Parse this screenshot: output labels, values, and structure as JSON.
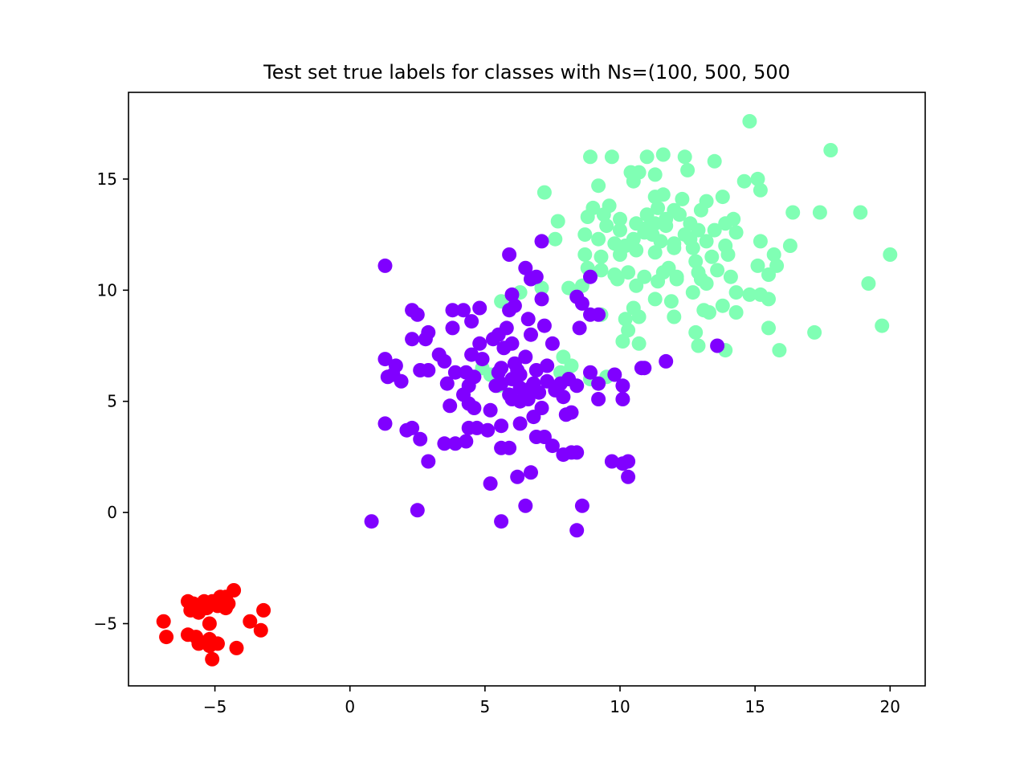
{
  "chart_data": {
    "type": "scatter",
    "title": "Test set true labels for classes with Ns=(100, 500, 500",
    "xlabel": "",
    "ylabel": "",
    "xlim": [
      -8.2,
      21.3
    ],
    "ylim": [
      -7.8,
      18.9
    ],
    "xticks": [
      -5,
      0,
      5,
      10,
      15,
      20
    ],
    "xtick_labels": [
      "−5",
      "0",
      "5",
      "10",
      "15",
      "20"
    ],
    "yticks": [
      -5,
      0,
      5,
      10,
      15
    ],
    "ytick_labels": [
      "−5",
      "0",
      "5",
      "10",
      "15"
    ],
    "grid": false,
    "series": [
      {
        "color": "#80ffb4",
        "points": [
          [
            14.8,
            17.6
          ],
          [
            17.8,
            16.3
          ],
          [
            8.9,
            16.0
          ],
          [
            9.7,
            16.0
          ],
          [
            11.0,
            16.0
          ],
          [
            11.6,
            16.1
          ],
          [
            12.4,
            16.0
          ],
          [
            10.4,
            15.3
          ],
          [
            10.7,
            15.3
          ],
          [
            11.3,
            15.2
          ],
          [
            12.5,
            15.4
          ],
          [
            13.5,
            15.8
          ],
          [
            14.6,
            14.9
          ],
          [
            15.1,
            15.0
          ],
          [
            7.2,
            14.4
          ],
          [
            9.2,
            14.7
          ],
          [
            10.5,
            14.9
          ],
          [
            11.3,
            14.2
          ],
          [
            11.6,
            14.3
          ],
          [
            12.3,
            14.1
          ],
          [
            13.0,
            13.6
          ],
          [
            13.2,
            14.0
          ],
          [
            13.8,
            14.2
          ],
          [
            15.2,
            14.5
          ],
          [
            7.7,
            13.1
          ],
          [
            8.8,
            13.3
          ],
          [
            9.0,
            13.7
          ],
          [
            9.4,
            13.4
          ],
          [
            10.0,
            13.2
          ],
          [
            10.6,
            13.0
          ],
          [
            11.0,
            13.4
          ],
          [
            11.4,
            13.7
          ],
          [
            11.7,
            13.2
          ],
          [
            12.2,
            13.4
          ],
          [
            12.6,
            13.0
          ],
          [
            14.2,
            13.2
          ],
          [
            16.4,
            13.5
          ],
          [
            17.4,
            13.5
          ],
          [
            18.9,
            13.5
          ],
          [
            9.5,
            12.9
          ],
          [
            10.0,
            12.7
          ],
          [
            11.2,
            12.5
          ],
          [
            11.7,
            12.9
          ],
          [
            12.4,
            12.5
          ],
          [
            13.5,
            12.7
          ],
          [
            13.9,
            13.0
          ],
          [
            14.3,
            12.6
          ],
          [
            8.7,
            12.5
          ],
          [
            9.2,
            12.3
          ],
          [
            9.8,
            12.1
          ],
          [
            10.5,
            12.3
          ],
          [
            10.9,
            12.6
          ],
          [
            11.5,
            12.2
          ],
          [
            12.0,
            12.1
          ],
          [
            12.6,
            12.3
          ],
          [
            13.2,
            12.2
          ],
          [
            13.9,
            12.0
          ],
          [
            15.2,
            12.2
          ],
          [
            16.3,
            12.0
          ],
          [
            7.6,
            12.3
          ],
          [
            8.7,
            11.6
          ],
          [
            9.3,
            11.5
          ],
          [
            10.0,
            11.6
          ],
          [
            10.6,
            11.8
          ],
          [
            11.3,
            11.7
          ],
          [
            12.0,
            11.9
          ],
          [
            12.8,
            11.3
          ],
          [
            13.4,
            11.5
          ],
          [
            14.0,
            11.6
          ],
          [
            15.7,
            11.6
          ],
          [
            20.0,
            11.6
          ],
          [
            8.8,
            11.0
          ],
          [
            9.3,
            10.9
          ],
          [
            10.3,
            10.8
          ],
          [
            10.9,
            10.6
          ],
          [
            11.6,
            10.8
          ],
          [
            12.1,
            10.6
          ],
          [
            12.9,
            10.8
          ],
          [
            13.6,
            10.9
          ],
          [
            14.1,
            10.6
          ],
          [
            15.1,
            11.1
          ],
          [
            15.8,
            11.1
          ],
          [
            15.5,
            10.7
          ],
          [
            9.9,
            10.5
          ],
          [
            10.6,
            10.2
          ],
          [
            11.4,
            10.4
          ],
          [
            12.1,
            10.5
          ],
          [
            13.2,
            10.3
          ],
          [
            14.3,
            9.9
          ],
          [
            14.8,
            9.8
          ],
          [
            15.2,
            9.8
          ],
          [
            19.2,
            10.3
          ],
          [
            8.1,
            10.1
          ],
          [
            7.1,
            10.1
          ],
          [
            6.3,
            9.9
          ],
          [
            5.6,
            9.5
          ],
          [
            10.5,
            9.2
          ],
          [
            11.3,
            9.6
          ],
          [
            11.9,
            9.5
          ],
          [
            12.7,
            9.9
          ],
          [
            13.1,
            9.1
          ],
          [
            13.8,
            9.3
          ],
          [
            14.3,
            9.0
          ],
          [
            15.5,
            9.6
          ],
          [
            9.3,
            8.9
          ],
          [
            10.2,
            8.7
          ],
          [
            10.7,
            8.8
          ],
          [
            12.0,
            8.8
          ],
          [
            13.3,
            9.0
          ],
          [
            12.8,
            8.1
          ],
          [
            15.5,
            8.3
          ],
          [
            17.2,
            8.1
          ],
          [
            19.7,
            8.4
          ],
          [
            10.3,
            8.2
          ],
          [
            10.1,
            7.7
          ],
          [
            10.7,
            7.6
          ],
          [
            12.9,
            7.5
          ],
          [
            13.9,
            7.3
          ],
          [
            15.9,
            7.3
          ],
          [
            7.9,
            7.0
          ],
          [
            8.2,
            6.6
          ],
          [
            7.8,
            6.3
          ],
          [
            8.9,
            6.0
          ],
          [
            9.5,
            6.1
          ],
          [
            5.5,
            5.7
          ],
          [
            5.2,
            6.2
          ],
          [
            4.9,
            6.5
          ],
          [
            8.6,
            10.2
          ],
          [
            9.8,
            10.7
          ],
          [
            11.0,
            12.8
          ],
          [
            12.7,
            11.9
          ],
          [
            13.0,
            10.5
          ],
          [
            11.8,
            11.0
          ],
          [
            10.2,
            12.0
          ],
          [
            9.6,
            13.8
          ],
          [
            12.0,
            13.6
          ],
          [
            12.9,
            12.7
          ],
          [
            11.3,
            13.0
          ]
        ]
      },
      {
        "color": "#8000ff",
        "points": [
          [
            1.3,
            11.1
          ],
          [
            7.1,
            12.2
          ],
          [
            5.9,
            11.6
          ],
          [
            6.5,
            11.0
          ],
          [
            6.7,
            10.5
          ],
          [
            6.9,
            10.6
          ],
          [
            8.9,
            10.6
          ],
          [
            6.0,
            9.8
          ],
          [
            7.1,
            9.6
          ],
          [
            6.1,
            9.3
          ],
          [
            8.4,
            9.7
          ],
          [
            8.6,
            9.4
          ],
          [
            2.3,
            9.1
          ],
          [
            2.5,
            8.9
          ],
          [
            3.8,
            9.1
          ],
          [
            4.2,
            9.1
          ],
          [
            4.8,
            9.2
          ],
          [
            5.9,
            9.1
          ],
          [
            8.9,
            8.9
          ],
          [
            9.2,
            8.9
          ],
          [
            4.5,
            8.6
          ],
          [
            6.6,
            8.7
          ],
          [
            3.8,
            8.3
          ],
          [
            2.9,
            8.1
          ],
          [
            5.5,
            8.0
          ],
          [
            5.8,
            8.3
          ],
          [
            6.7,
            8.0
          ],
          [
            7.2,
            8.4
          ],
          [
            8.5,
            8.3
          ],
          [
            2.3,
            7.8
          ],
          [
            2.8,
            7.8
          ],
          [
            4.8,
            7.6
          ],
          [
            5.3,
            7.8
          ],
          [
            5.7,
            7.4
          ],
          [
            6.0,
            7.6
          ],
          [
            7.5,
            7.6
          ],
          [
            13.6,
            7.5
          ],
          [
            1.3,
            6.9
          ],
          [
            1.7,
            6.6
          ],
          [
            3.3,
            7.1
          ],
          [
            3.5,
            6.8
          ],
          [
            4.9,
            6.9
          ],
          [
            5.6,
            6.5
          ],
          [
            6.1,
            6.7
          ],
          [
            6.5,
            7.0
          ],
          [
            6.9,
            6.4
          ],
          [
            7.3,
            6.6
          ],
          [
            11.7,
            6.8
          ],
          [
            1.4,
            6.1
          ],
          [
            1.6,
            6.2
          ],
          [
            1.9,
            5.9
          ],
          [
            2.6,
            6.4
          ],
          [
            2.9,
            6.4
          ],
          [
            3.9,
            6.3
          ],
          [
            4.3,
            6.3
          ],
          [
            4.6,
            6.1
          ],
          [
            5.5,
            6.3
          ],
          [
            6.0,
            6.0
          ],
          [
            6.3,
            6.2
          ],
          [
            6.8,
            5.8
          ],
          [
            7.3,
            5.9
          ],
          [
            7.6,
            5.5
          ],
          [
            8.1,
            6.0
          ],
          [
            8.9,
            6.3
          ],
          [
            9.8,
            6.2
          ],
          [
            10.8,
            6.5
          ],
          [
            3.6,
            5.8
          ],
          [
            4.2,
            5.3
          ],
          [
            4.4,
            5.7
          ],
          [
            5.6,
            5.8
          ],
          [
            5.9,
            5.3
          ],
          [
            6.3,
            5.6
          ],
          [
            6.7,
            5.6
          ],
          [
            7.0,
            5.4
          ],
          [
            8.4,
            5.7
          ],
          [
            9.2,
            5.8
          ],
          [
            10.1,
            5.7
          ],
          [
            3.7,
            4.8
          ],
          [
            4.4,
            4.9
          ],
          [
            4.6,
            4.7
          ],
          [
            5.2,
            4.6
          ],
          [
            6.0,
            5.1
          ],
          [
            6.3,
            5.0
          ],
          [
            6.6,
            5.1
          ],
          [
            7.1,
            4.7
          ],
          [
            7.9,
            5.2
          ],
          [
            9.2,
            5.1
          ],
          [
            10.1,
            5.1
          ],
          [
            1.3,
            4.0
          ],
          [
            2.1,
            3.7
          ],
          [
            2.3,
            3.8
          ],
          [
            4.4,
            3.8
          ],
          [
            4.7,
            3.8
          ],
          [
            5.1,
            3.7
          ],
          [
            5.6,
            3.9
          ],
          [
            6.3,
            4.0
          ],
          [
            6.8,
            4.3
          ],
          [
            8.0,
            4.4
          ],
          [
            8.2,
            4.5
          ],
          [
            2.6,
            3.3
          ],
          [
            3.5,
            3.1
          ],
          [
            3.9,
            3.1
          ],
          [
            4.3,
            3.2
          ],
          [
            5.9,
            2.9
          ],
          [
            6.9,
            3.4
          ],
          [
            7.2,
            3.4
          ],
          [
            7.5,
            3.0
          ],
          [
            7.9,
            2.6
          ],
          [
            8.2,
            2.7
          ],
          [
            8.4,
            2.7
          ],
          [
            2.9,
            2.3
          ],
          [
            5.6,
            2.9
          ],
          [
            6.2,
            1.6
          ],
          [
            6.7,
            1.8
          ],
          [
            9.7,
            2.3
          ],
          [
            10.1,
            2.2
          ],
          [
            10.3,
            2.3
          ],
          [
            10.3,
            1.6
          ],
          [
            5.2,
            1.3
          ],
          [
            2.5,
            0.1
          ],
          [
            6.5,
            0.3
          ],
          [
            8.6,
            0.3
          ],
          [
            0.8,
            -0.4
          ],
          [
            5.6,
            -0.4
          ],
          [
            8.4,
            -0.8
          ],
          [
            10.9,
            6.5
          ],
          [
            4.5,
            7.1
          ],
          [
            6.2,
            6.4
          ],
          [
            6.5,
            5.2
          ],
          [
            5.4,
            5.7
          ],
          [
            7.8,
            5.8
          ]
        ]
      },
      {
        "color": "#ff0000",
        "points": [
          [
            -4.3,
            -3.5
          ],
          [
            -4.6,
            -3.8
          ],
          [
            -4.8,
            -3.8
          ],
          [
            -5.1,
            -4.0
          ],
          [
            -5.4,
            -4.0
          ],
          [
            -5.8,
            -4.1
          ],
          [
            -6.0,
            -4.0
          ],
          [
            -4.5,
            -4.1
          ],
          [
            -4.6,
            -4.3
          ],
          [
            -4.9,
            -4.2
          ],
          [
            -5.3,
            -4.3
          ],
          [
            -5.6,
            -4.5
          ],
          [
            -3.2,
            -4.4
          ],
          [
            -6.9,
            -4.9
          ],
          [
            -5.2,
            -5.0
          ],
          [
            -3.7,
            -4.9
          ],
          [
            -6.8,
            -5.6
          ],
          [
            -6.0,
            -5.5
          ],
          [
            -5.7,
            -5.6
          ],
          [
            -5.2,
            -5.7
          ],
          [
            -3.3,
            -5.3
          ],
          [
            -5.6,
            -5.9
          ],
          [
            -5.2,
            -6.0
          ],
          [
            -4.9,
            -5.9
          ],
          [
            -4.2,
            -6.1
          ],
          [
            -5.1,
            -6.6
          ],
          [
            -4.7,
            -4.0
          ],
          [
            -5.9,
            -4.4
          ]
        ]
      }
    ]
  }
}
